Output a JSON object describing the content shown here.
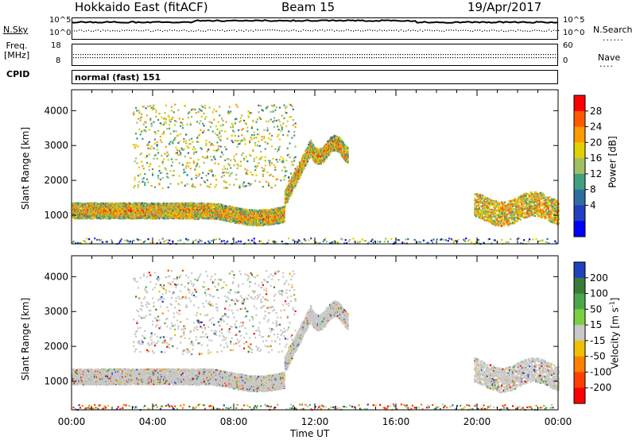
{
  "header": {
    "station": "Hokkaido East (fitACF)",
    "beam": "Beam 15",
    "date": "19/Apr/2017"
  },
  "left_labels": {
    "nsky": "N.Sky",
    "freq_line1": "Freq.",
    "freq_line2": "[MHz]",
    "cpid": "CPID"
  },
  "right_labels": {
    "nsearch": "N.Search",
    "nave": "Nave"
  },
  "strip_axes": {
    "noise_left_top": "10^5",
    "noise_left_bottom": "10^0",
    "noise_right_top": "10^5",
    "noise_right_bottom": "10^0",
    "freq_top": "18",
    "freq_bottom": "8",
    "nave_top": "60",
    "nave_bottom": "0"
  },
  "cpid_text": "normal (fast) 151",
  "power_colorbar": {
    "label": "Power [dB]",
    "ticks": [
      "28",
      "24",
      "20",
      "16",
      "12",
      "8",
      "4"
    ],
    "colors": [
      "#ff0000",
      "#ff5a00",
      "#ff9a00",
      "#e0d000",
      "#9fc060",
      "#3f9f80",
      "#2e6da0",
      "#2040c0",
      "#0000ff"
    ]
  },
  "velocity_colorbar": {
    "label": "Velocity [m s",
    "label_sup": "-1",
    "label_end": "]",
    "ticks": [
      "200",
      "100",
      "50",
      "15",
      "-15",
      "-50",
      "-100",
      "-200"
    ],
    "colors": [
      "#2040c0",
      "#3a7a3a",
      "#4aa84a",
      "#7ad040",
      "#c8c8c8",
      "#f0c000",
      "#ff8000",
      "#ff4000",
      "#ff0000"
    ]
  },
  "chart_data": [
    {
      "type": "heatmap",
      "title": "",
      "xlabel": "Time UT",
      "ylabel": "Slant Range [km]",
      "x_ticks": [
        "00:00",
        "04:00",
        "08:00",
        "12:00",
        "16:00",
        "20:00",
        "00:00"
      ],
      "xlim_hours": [
        0,
        24
      ],
      "ylim_km": [
        180,
        4600
      ],
      "y_ticks": [
        1000,
        2000,
        3000,
        4000
      ],
      "quantity": "Power [dB]",
      "range": [
        0,
        30
      ],
      "echo_bands": [
        {
          "t_start": 0,
          "t_end": 10.5,
          "range_km": [
            900,
            1300
          ],
          "value_db": 26
        },
        {
          "t_start": 10.5,
          "t_end": 13.5,
          "range_km": [
            1500,
            3100
          ],
          "value_db": 24
        },
        {
          "t_start": 20,
          "t_end": 24,
          "range_km": [
            900,
            1600
          ],
          "value_db": 22
        }
      ]
    },
    {
      "type": "heatmap",
      "title": "",
      "xlabel": "Time UT",
      "ylabel": "Slant Range [km]",
      "x_ticks": [
        "00:00",
        "04:00",
        "08:00",
        "12:00",
        "16:00",
        "20:00",
        "00:00"
      ],
      "xlim_hours": [
        0,
        24
      ],
      "ylim_km": [
        180,
        4600
      ],
      "y_ticks": [
        1000,
        2000,
        3000,
        4000
      ],
      "quantity": "Velocity [m s-1]",
      "range": [
        -200,
        200
      ],
      "echo_bands": [
        {
          "t_start": 0,
          "t_end": 10.5,
          "range_km": [
            900,
            1300
          ],
          "value_ms": 0
        },
        {
          "t_start": 10.5,
          "t_end": 13.5,
          "range_km": [
            1500,
            3100
          ],
          "value_ms": 0
        },
        {
          "t_start": 20,
          "t_end": 24,
          "range_km": [
            900,
            1600
          ],
          "value_ms": 0
        }
      ]
    }
  ],
  "x_axis_label": "Time UT",
  "x_ticks": [
    "00:00",
    "04:00",
    "08:00",
    "12:00",
    "16:00",
    "20:00",
    "00:00"
  ],
  "y_label": "Slant Range [km]",
  "y_ticks": [
    "1000",
    "2000",
    "3000",
    "4000"
  ]
}
